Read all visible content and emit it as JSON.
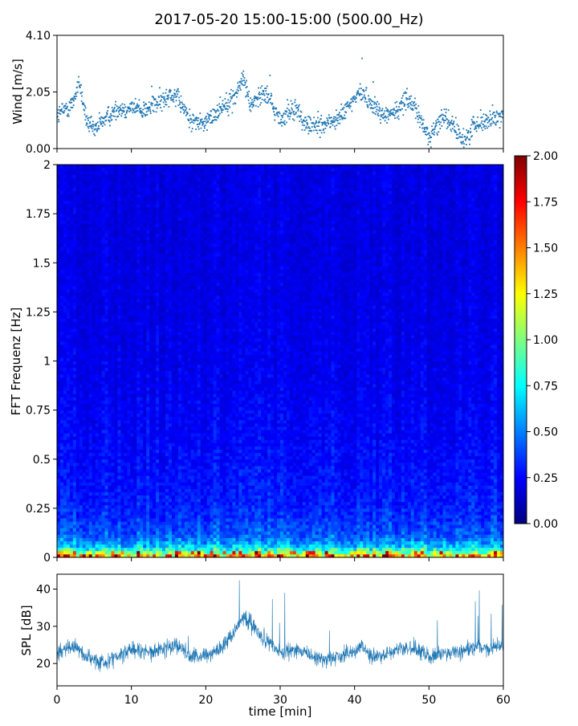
{
  "figure": {
    "title": "2017-05-20 15:00-15:00 (500.00_Hz)"
  },
  "colors": {
    "series": "#1f77b4",
    "jet": [
      "#00007f",
      "#0000ff",
      "#007fff",
      "#00ffff",
      "#7fff7f",
      "#ffff00",
      "#ff7f00",
      "#ff0000",
      "#7f0000"
    ]
  },
  "chart_data": [
    {
      "type": "scatter",
      "ylabel": "Wind [m/s]",
      "xlim": [
        0,
        60
      ],
      "ylim": [
        0,
        4.1
      ],
      "yticks": [
        "0.00",
        "2.05",
        "4.10"
      ],
      "ytick_values": [
        0,
        2.05,
        4.1
      ],
      "series": [
        {
          "x": [
            0,
            2,
            3,
            4,
            5,
            6,
            8,
            10,
            12,
            14,
            15,
            16,
            18,
            20,
            22,
            24,
            25,
            26,
            28,
            30,
            32,
            33,
            34,
            36,
            38,
            40,
            41,
            42,
            44,
            46,
            47,
            48,
            50,
            52,
            54,
            55,
            56,
            58,
            60
          ],
          "values": [
            1.2,
            1.6,
            2.4,
            1.0,
            0.6,
            1.0,
            1.4,
            1.5,
            1.4,
            1.7,
            2.0,
            1.9,
            1.0,
            0.9,
            1.5,
            1.9,
            2.6,
            1.6,
            2.1,
            1.0,
            1.5,
            1.0,
            0.8,
            0.9,
            1.1,
            1.8,
            2.1,
            1.7,
            1.2,
            1.4,
            1.9,
            1.5,
            0.4,
            1.2,
            0.5,
            0.3,
            0.9,
            1.0,
            1.2
          ]
        }
      ]
    },
    {
      "type": "heatmap",
      "ylabel": "FFT Frequenz [Hz]",
      "xlim": [
        0,
        60
      ],
      "ylim": [
        0,
        2
      ],
      "yticks": [
        "0",
        "0.25",
        "0.5",
        "0.75",
        "1",
        "1.25",
        "1.5",
        "1.75",
        "2"
      ],
      "ytick_values": [
        0,
        0.25,
        0.5,
        0.75,
        1,
        1.25,
        1.5,
        1.75,
        2
      ],
      "colorbar": {
        "range": [
          0,
          2
        ],
        "ticks": [
          "0.00",
          "0.25",
          "0.50",
          "0.75",
          "1.00",
          "1.25",
          "1.50",
          "1.75",
          "2.00"
        ],
        "tick_values": [
          0,
          0.25,
          0.5,
          0.75,
          1,
          1.25,
          1.5,
          1.75,
          2
        ]
      },
      "profile": {
        "freq": [
          0,
          0.02,
          0.05,
          0.1,
          0.2,
          0.3,
          0.5,
          0.75,
          1.0,
          1.5,
          2.0
        ],
        "values": [
          1.6,
          1.1,
          0.7,
          0.45,
          0.35,
          0.3,
          0.27,
          0.24,
          0.22,
          0.2,
          0.2
        ]
      }
    },
    {
      "type": "line",
      "xlabel": "time [min]",
      "ylabel": "SPL [dB]",
      "xlim": [
        0,
        60
      ],
      "ylim": [
        14,
        44
      ],
      "xticks": [
        "0",
        "10",
        "20",
        "30",
        "40",
        "50",
        "60"
      ],
      "xtick_values": [
        0,
        10,
        20,
        30,
        40,
        50,
        60
      ],
      "yticks": [
        "20",
        "30",
        "40"
      ],
      "ytick_values": [
        20,
        30,
        40
      ],
      "series": [
        {
          "x": [
            0,
            2,
            4,
            6,
            8,
            10,
            12,
            14,
            16,
            18,
            20,
            22,
            24,
            25,
            26,
            28,
            30,
            32,
            34,
            36,
            38,
            40,
            41,
            42,
            44,
            46,
            48,
            50,
            52,
            54,
            56,
            58,
            60
          ],
          "values": [
            23,
            25,
            22,
            20,
            22,
            24,
            23,
            24,
            25,
            22,
            22,
            24,
            29,
            33,
            31,
            26,
            23,
            24,
            22,
            21,
            22,
            23,
            25,
            22,
            22,
            24,
            24,
            22,
            23,
            23,
            24,
            24,
            25
          ]
        }
      ]
    }
  ]
}
